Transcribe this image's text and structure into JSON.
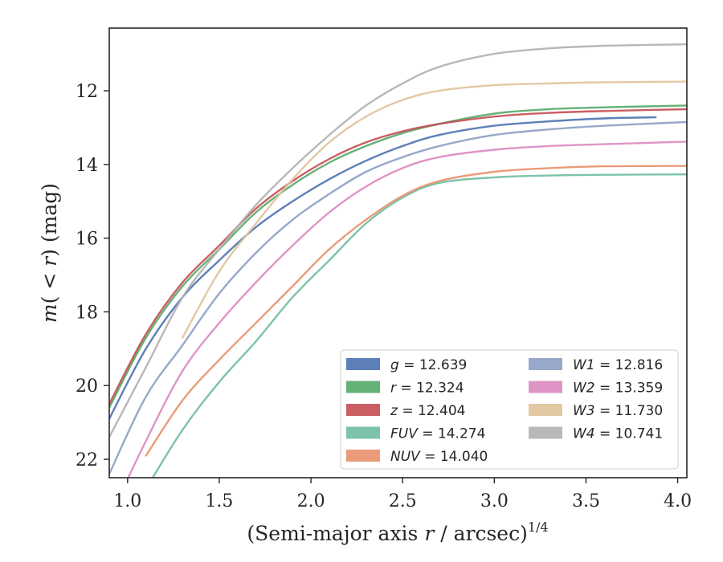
{
  "chart_data": {
    "type": "line",
    "xlabel_main": "(Semi-major axis ",
    "xlabel_var": "r",
    "xlabel_rest": " / arcsec)",
    "xlabel_sup": "1/4",
    "ylabel_main": "m",
    "ylabel_paren_open": "(",
    "ylabel_lt": " < ",
    "ylabel_var": "r",
    "ylabel_paren_close": ")",
    "ylabel_unit": " (mag)",
    "xlim": [
      0.9,
      4.05
    ],
    "ylim": [
      22.5,
      10.3
    ],
    "y_inverted": true,
    "x_ticks": [
      1.0,
      1.5,
      2.0,
      2.5,
      3.0,
      3.5,
      4.0
    ],
    "x_tick_labels": [
      "1.0",
      "1.5",
      "2.0",
      "2.5",
      "3.0",
      "3.5",
      "4.0"
    ],
    "y_ticks": [
      12,
      14,
      16,
      18,
      20,
      22
    ],
    "y_tick_labels": [
      "12",
      "14",
      "16",
      "18",
      "20",
      "22"
    ],
    "grid": false,
    "legend_position": "lower-right",
    "series": [
      {
        "name": "g",
        "value_label": " = 12.639",
        "color": "#4c72b0",
        "x": [
          0.9,
          1.1,
          1.3,
          1.5,
          1.7,
          1.9,
          2.1,
          2.3,
          2.5,
          2.7,
          3.0,
          3.3,
          3.6,
          3.88
        ],
        "y": [
          20.9,
          19.0,
          17.6,
          16.6,
          15.7,
          15.0,
          14.4,
          13.9,
          13.5,
          13.2,
          12.95,
          12.83,
          12.75,
          12.72
        ]
      },
      {
        "name": "r",
        "value_label": " = 12.324",
        "color": "#55a868",
        "x": [
          0.9,
          1.1,
          1.3,
          1.5,
          1.7,
          1.9,
          2.1,
          2.3,
          2.5,
          2.7,
          3.0,
          3.3,
          3.6,
          4.05
        ],
        "y": [
          20.6,
          18.7,
          17.3,
          16.3,
          15.3,
          14.55,
          13.95,
          13.5,
          13.15,
          12.9,
          12.62,
          12.5,
          12.45,
          12.4
        ]
      },
      {
        "name": "z",
        "value_label": " = 12.404",
        "color": "#c44e52",
        "x": [
          0.9,
          1.1,
          1.3,
          1.5,
          1.7,
          1.9,
          2.1,
          2.3,
          2.5,
          2.7,
          3.0,
          3.3,
          3.6,
          4.05
        ],
        "y": [
          20.5,
          18.6,
          17.2,
          16.2,
          15.2,
          14.45,
          13.85,
          13.4,
          13.1,
          12.9,
          12.7,
          12.6,
          12.55,
          12.5
        ]
      },
      {
        "name": "FUV",
        "value_label": " = 14.274",
        "color": "#6fbda0",
        "x": [
          1.1,
          1.3,
          1.5,
          1.7,
          1.9,
          2.1,
          2.3,
          2.5,
          2.7,
          3.0,
          3.3,
          3.6,
          4.05
        ],
        "y": [
          22.8,
          21.2,
          19.9,
          18.8,
          17.6,
          16.6,
          15.6,
          14.9,
          14.5,
          14.35,
          14.3,
          14.28,
          14.27
        ]
      },
      {
        "name": "NUV",
        "value_label": " = 14.040",
        "color": "#e8906a",
        "x": [
          1.1,
          1.3,
          1.5,
          1.7,
          1.9,
          2.1,
          2.3,
          2.5,
          2.7,
          3.0,
          3.3,
          3.6,
          4.05
        ],
        "y": [
          21.9,
          20.4,
          19.3,
          18.3,
          17.3,
          16.3,
          15.5,
          14.85,
          14.45,
          14.2,
          14.1,
          14.05,
          14.04
        ]
      },
      {
        "name": "W1",
        "value_label": " = 12.816",
        "color": "#8c9fc4",
        "x": [
          0.9,
          1.1,
          1.3,
          1.5,
          1.7,
          1.9,
          2.1,
          2.3,
          2.5,
          2.7,
          3.0,
          3.3,
          3.6,
          4.05
        ],
        "y": [
          22.4,
          20.3,
          18.9,
          17.5,
          16.4,
          15.5,
          14.8,
          14.2,
          13.8,
          13.5,
          13.2,
          13.05,
          12.95,
          12.85
        ]
      },
      {
        "name": "W2",
        "value_label": " = 13.359",
        "color": "#db88c0",
        "x": [
          0.9,
          1.1,
          1.3,
          1.5,
          1.7,
          1.9,
          2.1,
          2.3,
          2.5,
          2.7,
          3.0,
          3.3,
          3.6,
          4.05
        ],
        "y": [
          23.6,
          21.5,
          19.6,
          18.3,
          17.2,
          16.2,
          15.3,
          14.6,
          14.1,
          13.8,
          13.6,
          13.5,
          13.45,
          13.38
        ]
      },
      {
        "name": "W3",
        "value_label": " = 11.730",
        "color": "#dfc39a",
        "x": [
          1.3,
          1.5,
          1.7,
          1.9,
          2.1,
          2.3,
          2.5,
          2.7,
          3.0,
          3.3,
          3.6,
          4.05
        ],
        "y": [
          18.7,
          16.9,
          15.6,
          14.4,
          13.4,
          12.7,
          12.25,
          12.0,
          11.85,
          11.8,
          11.77,
          11.75
        ]
      },
      {
        "name": "W4",
        "value_label": " = 10.741",
        "color": "#b0b0b0",
        "x": [
          0.9,
          1.1,
          1.3,
          1.5,
          1.7,
          1.9,
          2.1,
          2.3,
          2.5,
          2.7,
          3.0,
          3.3,
          3.6,
          4.05
        ],
        "y": [
          21.4,
          19.5,
          17.6,
          16.3,
          15.1,
          14.1,
          13.2,
          12.4,
          11.8,
          11.35,
          11.0,
          10.85,
          10.78,
          10.74
        ]
      }
    ]
  }
}
